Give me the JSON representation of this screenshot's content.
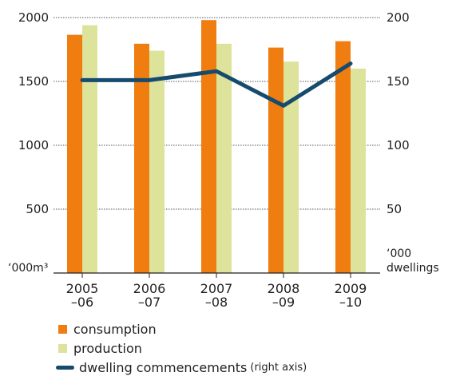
{
  "chart_data": {
    "type": "bar",
    "categories": [
      [
        "2005",
        "–06"
      ],
      [
        "2006",
        "–07"
      ],
      [
        "2007",
        "–08"
      ],
      [
        "2008",
        "–09"
      ],
      [
        "2009",
        "–10"
      ]
    ],
    "series": [
      {
        "name": "consumption",
        "axis": "left",
        "values": [
          1865,
          1795,
          1980,
          1765,
          1815
        ],
        "color": "#ef7d0f"
      },
      {
        "name": "production",
        "axis": "left",
        "values": [
          1940,
          1740,
          1795,
          1655,
          1600
        ],
        "color": "#dde39b"
      },
      {
        "name": "dwelling commencements",
        "axis": "right",
        "type": "line",
        "values": [
          151,
          151,
          158,
          131,
          164
        ],
        "color": "#174b6e"
      }
    ],
    "y_left": {
      "ticks": [
        "2000",
        "1500",
        "1000",
        "500"
      ],
      "ylim": [
        0,
        2000
      ],
      "unit": "‘000m³"
    },
    "y_right": {
      "ticks": [
        "200",
        "150",
        "100",
        "50"
      ],
      "ylim": [
        0,
        200
      ],
      "unit": [
        "‘000",
        "dwellings"
      ]
    },
    "grid": "dotted horizontal"
  },
  "legend": {
    "consumption": "consumption",
    "production": "production",
    "dwelling": "dwelling commencements",
    "dwelling_note": "(right axis)"
  }
}
